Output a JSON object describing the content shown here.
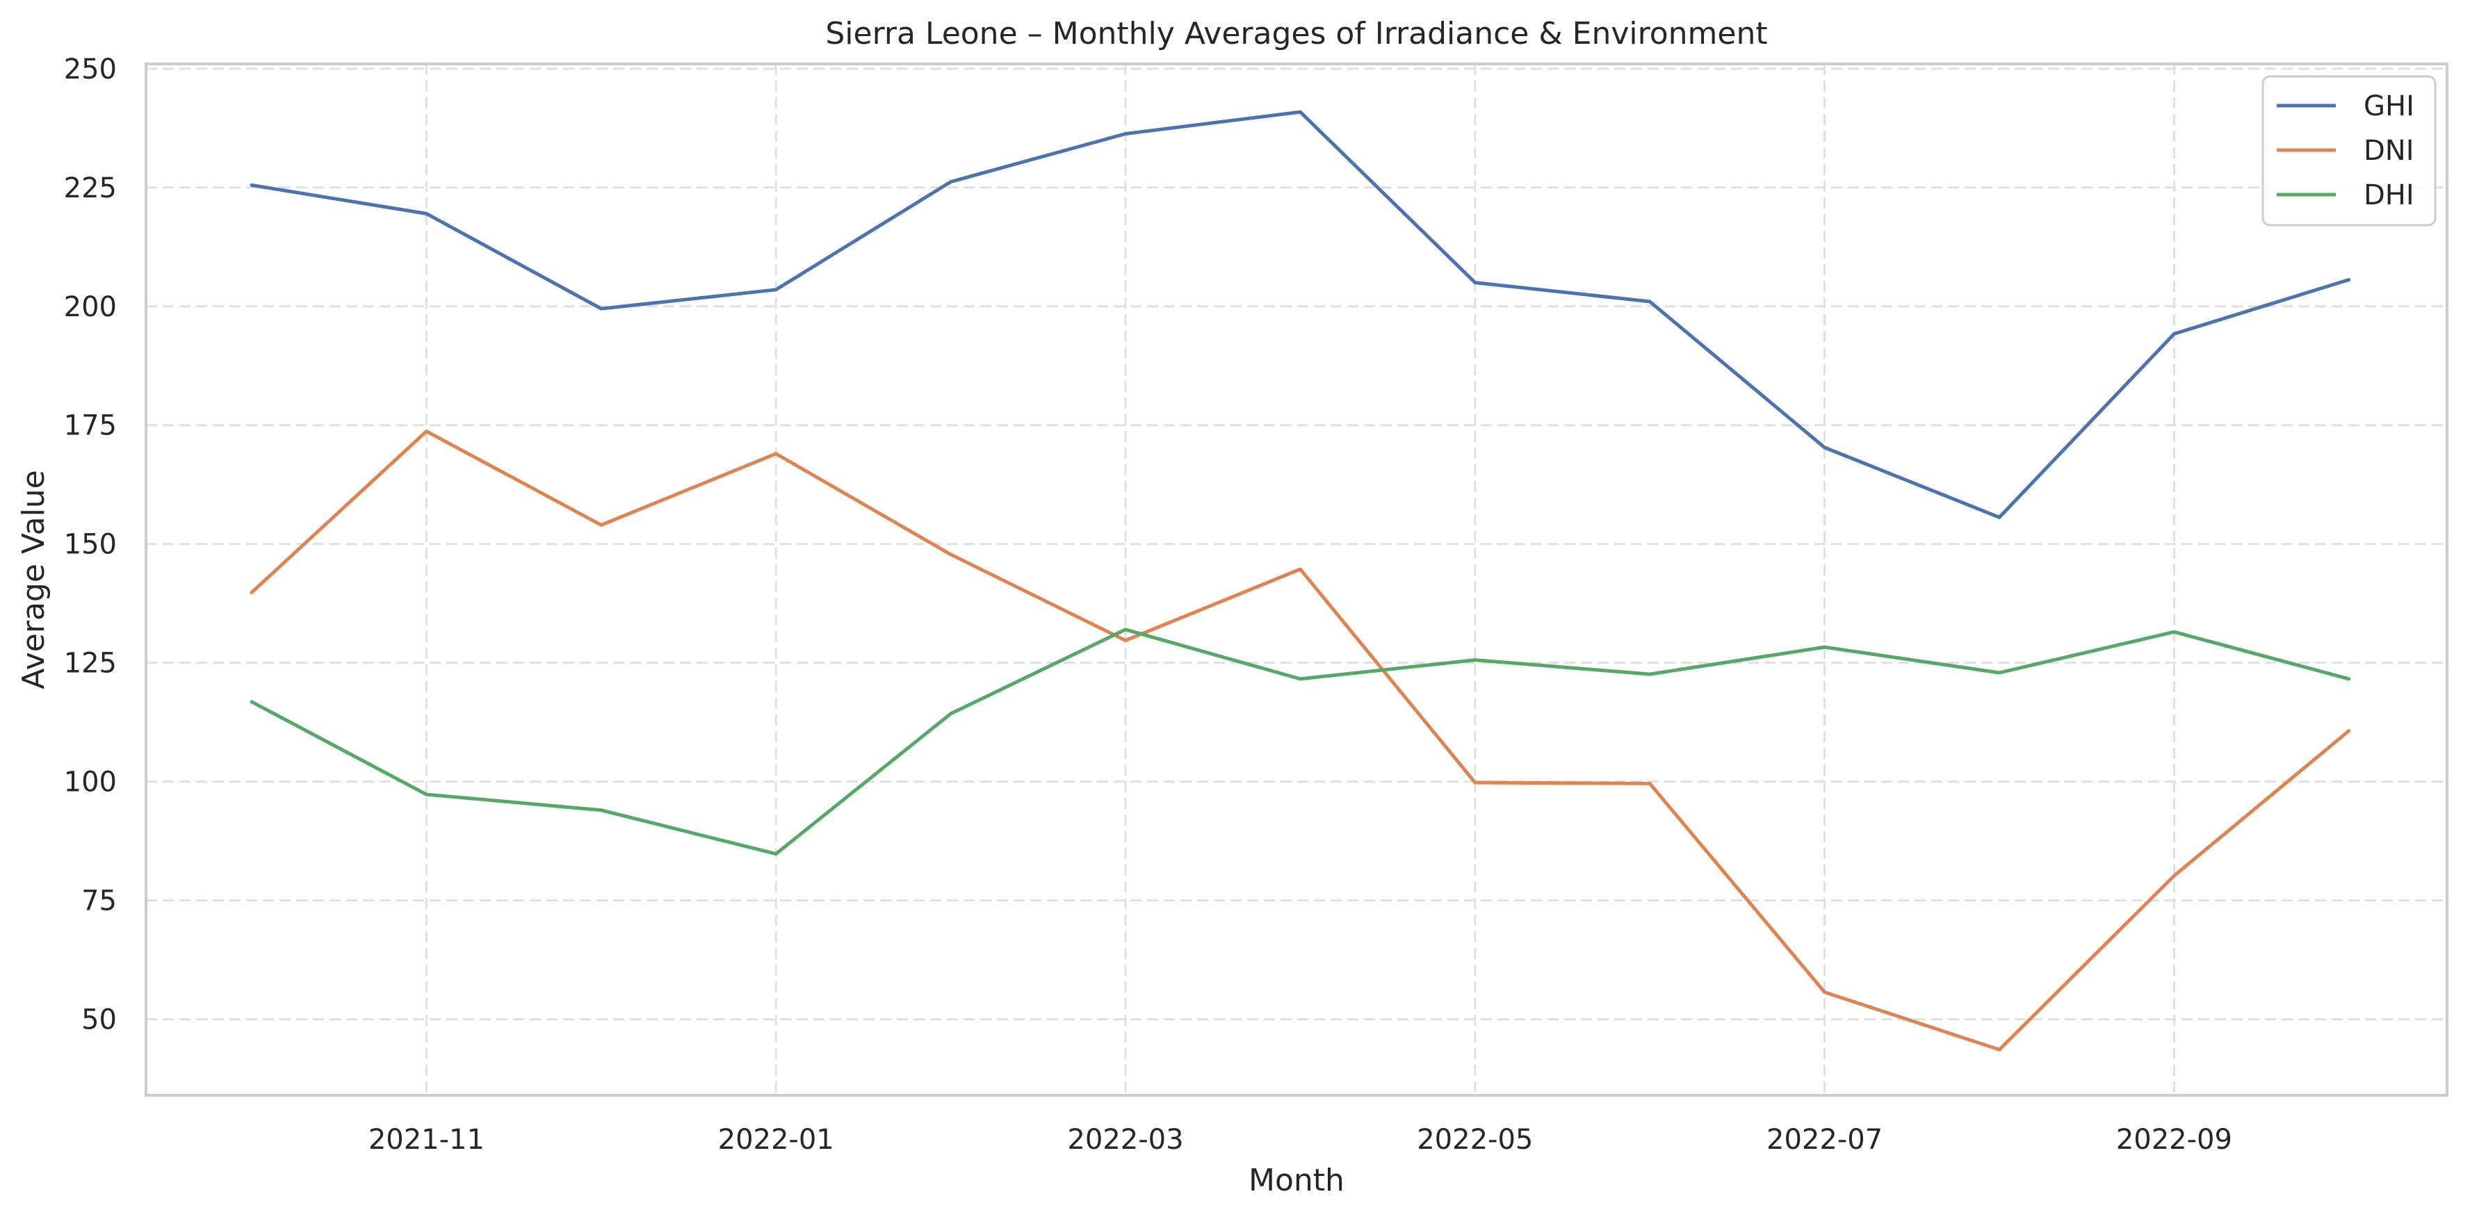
{
  "chart_data": {
    "type": "line",
    "title": "Sierra Leone – Monthly Averages of Irradiance & Environment",
    "xlabel": "Month",
    "ylabel": "Average Value",
    "x": [
      "2021-10",
      "2021-11",
      "2021-12",
      "2022-01",
      "2022-02",
      "2022-03",
      "2022-04",
      "2022-05",
      "2022-06",
      "2022-07",
      "2022-08",
      "2022-09",
      "2022-10"
    ],
    "x_tick_labels": [
      "2021-11",
      "2022-01",
      "2022-03",
      "2022-05",
      "2022-07",
      "2022-09"
    ],
    "y_ticks": [
      50,
      75,
      100,
      125,
      150,
      175,
      200,
      225,
      250
    ],
    "ylim": [
      34,
      251
    ],
    "grid": true,
    "legend_position": "top-right",
    "series": [
      {
        "name": "GHI",
        "color": "#4c72b0",
        "values": [
          225.5,
          219.5,
          199.5,
          203.5,
          226.2,
          236.3,
          240.9,
          205.0,
          201.0,
          170.3,
          155.6,
          194.2,
          205.6
        ]
      },
      {
        "name": "DNI",
        "color": "#dd8452",
        "values": [
          139.8,
          173.7,
          154.0,
          169.0,
          147.8,
          129.7,
          144.7,
          99.8,
          99.6,
          55.7,
          43.6,
          80.2,
          110.7
        ]
      },
      {
        "name": "DHI",
        "color": "#55a868",
        "values": [
          116.8,
          97.3,
          94.0,
          84.8,
          114.3,
          132.0,
          121.6,
          125.6,
          122.6,
          128.3,
          122.9,
          131.5,
          121.6
        ]
      }
    ]
  }
}
